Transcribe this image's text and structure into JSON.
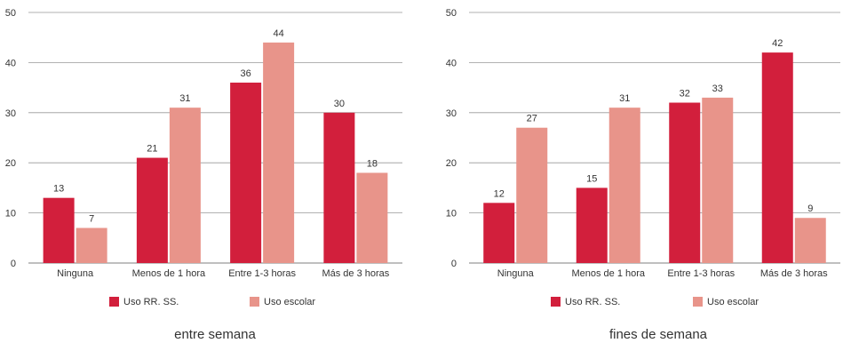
{
  "colors": {
    "uso_rrss": "#d21f3c",
    "uso_escolar": "#e8948a",
    "grid": "#999999"
  },
  "chart_data": [
    {
      "type": "bar",
      "caption": "entre semana",
      "categories": [
        "Ninguna",
        "Menos de 1 hora",
        "Entre 1-3 horas",
        "Más de 3 horas"
      ],
      "series": [
        {
          "name": "Uso RR. SS.",
          "values": [
            13,
            21,
            36,
            30
          ]
        },
        {
          "name": "Uso escolar",
          "values": [
            7,
            31,
            44,
            18
          ]
        }
      ],
      "ylim": [
        0,
        50
      ],
      "yticks": [
        0,
        10,
        20,
        30,
        40,
        50
      ],
      "grid": true,
      "legend": "bottom"
    },
    {
      "type": "bar",
      "caption": "fines de semana",
      "categories": [
        "Ninguna",
        "Menos de 1 hora",
        "Entre 1-3 horas",
        "Más de 3 horas"
      ],
      "series": [
        {
          "name": "Uso RR. SS.",
          "values": [
            12,
            15,
            32,
            42
          ]
        },
        {
          "name": "Uso escolar",
          "values": [
            27,
            31,
            33,
            9
          ]
        }
      ],
      "ylim": [
        0,
        50
      ],
      "yticks": [
        0,
        10,
        20,
        30,
        40,
        50
      ],
      "grid": true,
      "legend": "bottom"
    }
  ]
}
